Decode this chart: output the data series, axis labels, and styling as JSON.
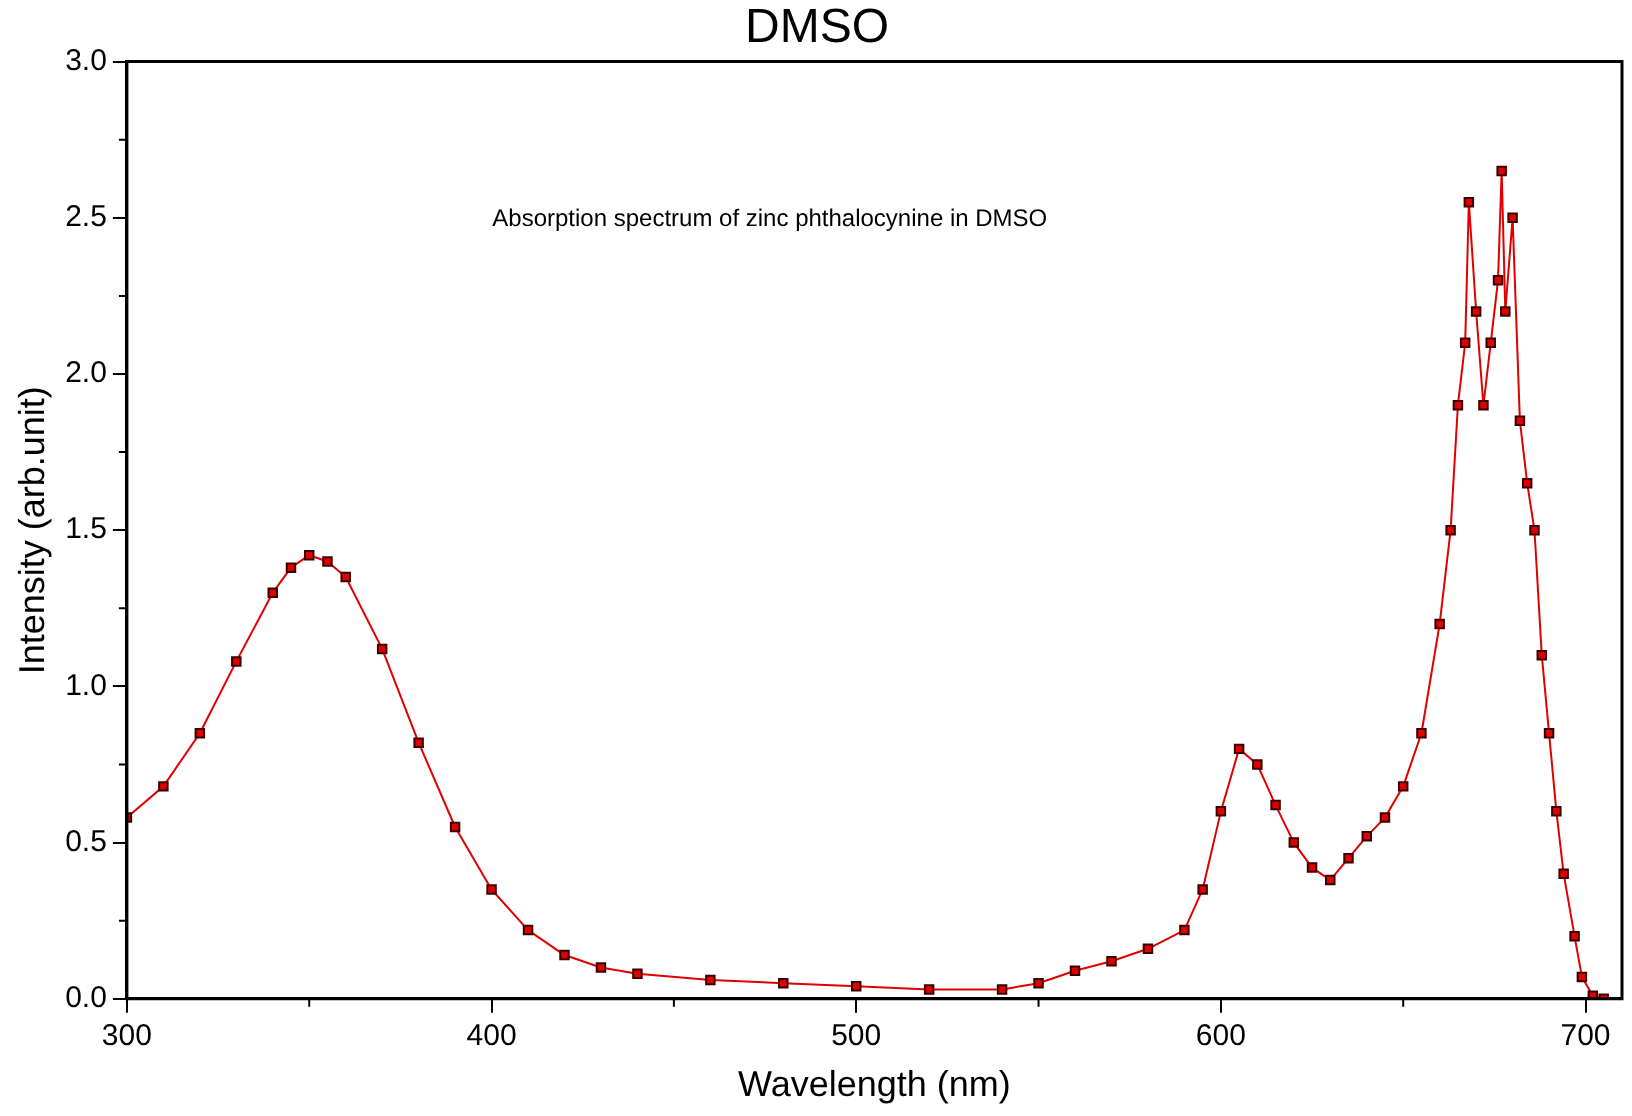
{
  "chart_data": {
    "type": "line",
    "title": "DMSO",
    "xlabel": "Wavelength (nm)",
    "ylabel": "Intensity (arb.unit)",
    "annotations": [
      "Absorption spectrum of zinc phthalocynine in DMSO"
    ],
    "marker": "square",
    "line_style": "solid",
    "grid": false,
    "legend": false,
    "xlim": [
      300,
      710
    ],
    "xticks": [
      300,
      400,
      500,
      600,
      700
    ],
    "ylim": [
      0,
      3
    ],
    "yticks": [
      {
        "value": 0,
        "label": "0.0"
      },
      0.5,
      {
        "value": 1,
        "label": "1.0"
      },
      1.5,
      {
        "value": 2,
        "label": "2.0"
      },
      2.5,
      {
        "value": 3,
        "label": "3.0"
      }
    ],
    "x": [
      300,
      310,
      320,
      330,
      340,
      345,
      350,
      355,
      360,
      370,
      380,
      390,
      400,
      410,
      420,
      430,
      440,
      460,
      480,
      500,
      520,
      540,
      550,
      560,
      570,
      580,
      590,
      595,
      600,
      605,
      610,
      615,
      620,
      625,
      630,
      635,
      640,
      645,
      650,
      655,
      660,
      663,
      665,
      667,
      668,
      670,
      672,
      674,
      676,
      677,
      678,
      680,
      682,
      684,
      686,
      688,
      690,
      692,
      694,
      697,
      699,
      702,
      705
    ],
    "series": [
      {
        "color": "#e00000",
        "values": [
          0.58,
          0.68,
          0.85,
          1.08,
          1.3,
          1.38,
          1.42,
          1.4,
          1.35,
          1.12,
          0.82,
          0.55,
          0.35,
          0.22,
          0.14,
          0.1,
          0.08,
          0.06,
          0.05,
          0.04,
          0.03,
          0.03,
          0.05,
          0.09,
          0.12,
          0.16,
          0.22,
          0.35,
          0.6,
          0.8,
          0.75,
          0.62,
          0.5,
          0.42,
          0.38,
          0.45,
          0.52,
          0.58,
          0.68,
          0.85,
          1.2,
          1.5,
          1.9,
          2.1,
          2.55,
          2.2,
          1.9,
          2.1,
          2.3,
          2.65,
          2.2,
          2.5,
          1.85,
          1.65,
          1.5,
          1.1,
          0.85,
          0.6,
          0.4,
          0.2,
          0.07,
          0.01,
          0.0
        ]
      }
    ]
  }
}
